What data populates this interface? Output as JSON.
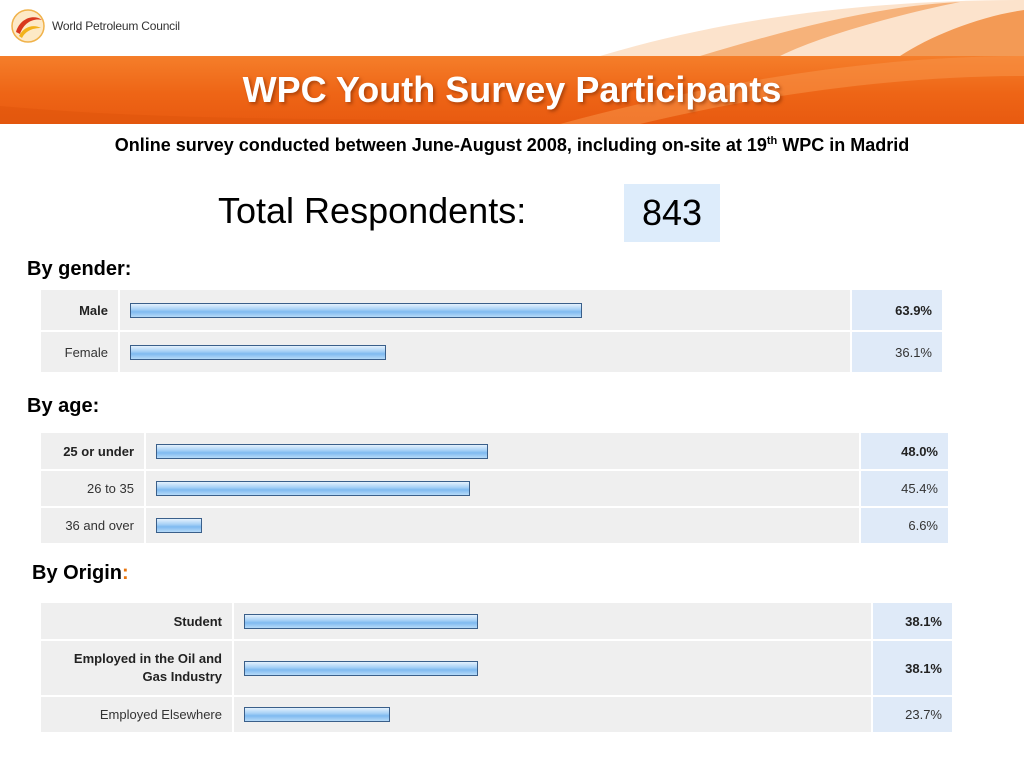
{
  "header": {
    "org_name": "World Petroleum Council",
    "title": "WPC Youth Survey Participants",
    "brand_colors": {
      "orange": "#ee6516",
      "logo_red": "#d9381e",
      "logo_yellow": "#f2b21b"
    }
  },
  "subtitle": {
    "text_before": "Online survey conducted between June-August 2008, including on-site at 19",
    "superscript": "th",
    "text_after": " WPC in Madrid"
  },
  "total": {
    "label": "Total Respondents:",
    "value": "843"
  },
  "sections": {
    "gender": {
      "label": "By gender:"
    },
    "age": {
      "label": "By age:"
    },
    "origin": {
      "label_main": "By Origin",
      "label_colon": ":"
    }
  },
  "chart_data": [
    {
      "type": "bar",
      "orientation": "horizontal",
      "categories": [
        "Male",
        "Female"
      ],
      "values": [
        63.9,
        36.1
      ],
      "labels": [
        "63.9%",
        "36.1%"
      ],
      "title": "By gender:",
      "xlim": [
        0,
        100
      ],
      "bar_color": "#8fc5f2"
    },
    {
      "type": "bar",
      "orientation": "horizontal",
      "categories": [
        "25 or under",
        "26 to 35",
        "36 and over"
      ],
      "values": [
        48.0,
        45.4,
        6.6
      ],
      "labels": [
        "48.0%",
        "45.4%",
        "6.6%"
      ],
      "title": "By age:",
      "xlim": [
        0,
        100
      ],
      "bar_color": "#8fc5f2"
    },
    {
      "type": "bar",
      "orientation": "horizontal",
      "categories": [
        "Student",
        "Employed in the Oil and Gas Industry",
        "Employed Elsewhere"
      ],
      "values": [
        38.1,
        38.1,
        23.7
      ],
      "labels": [
        "38.1%",
        "38.1%",
        "23.7%"
      ],
      "title": "By Origin:",
      "xlim": [
        0,
        100
      ],
      "bar_color": "#8fc5f2"
    }
  ]
}
